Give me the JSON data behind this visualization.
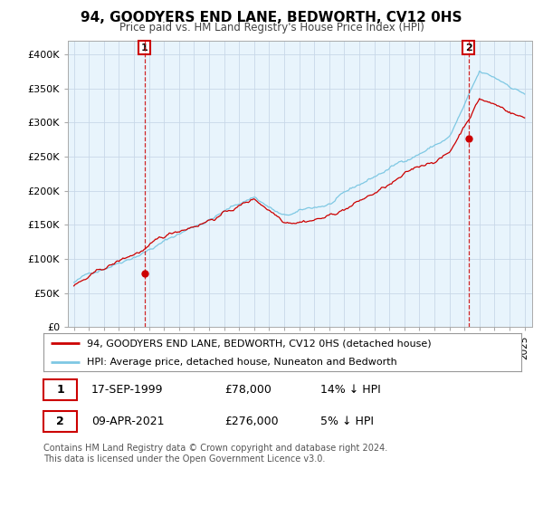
{
  "title": "94, GOODYERS END LANE, BEDWORTH, CV12 0HS",
  "subtitle": "Price paid vs. HM Land Registry's House Price Index (HPI)",
  "ylim": [
    0,
    420000
  ],
  "yticks": [
    0,
    50000,
    100000,
    150000,
    200000,
    250000,
    300000,
    350000,
    400000
  ],
  "ytick_labels": [
    "£0",
    "£50K",
    "£100K",
    "£150K",
    "£200K",
    "£250K",
    "£300K",
    "£350K",
    "£400K"
  ],
  "hpi_color": "#7ec8e3",
  "price_color": "#cc0000",
  "sale1_year": 1999.71,
  "sale1_value": 78000,
  "sale2_year": 2021.27,
  "sale2_value": 276000,
  "legend_entry1": "94, GOODYERS END LANE, BEDWORTH, CV12 0HS (detached house)",
  "legend_entry2": "HPI: Average price, detached house, Nuneaton and Bedworth",
  "note1_num": "1",
  "note1_date": "17-SEP-1999",
  "note1_price": "£78,000",
  "note1_hpi": "14% ↓ HPI",
  "note2_num": "2",
  "note2_date": "09-APR-2021",
  "note2_price": "£276,000",
  "note2_hpi": "5% ↓ HPI",
  "footer": "Contains HM Land Registry data © Crown copyright and database right 2024.\nThis data is licensed under the Open Government Licence v3.0.",
  "background_color": "#ffffff",
  "chart_bg_color": "#e8f4fc",
  "grid_color": "#c8d8e8"
}
